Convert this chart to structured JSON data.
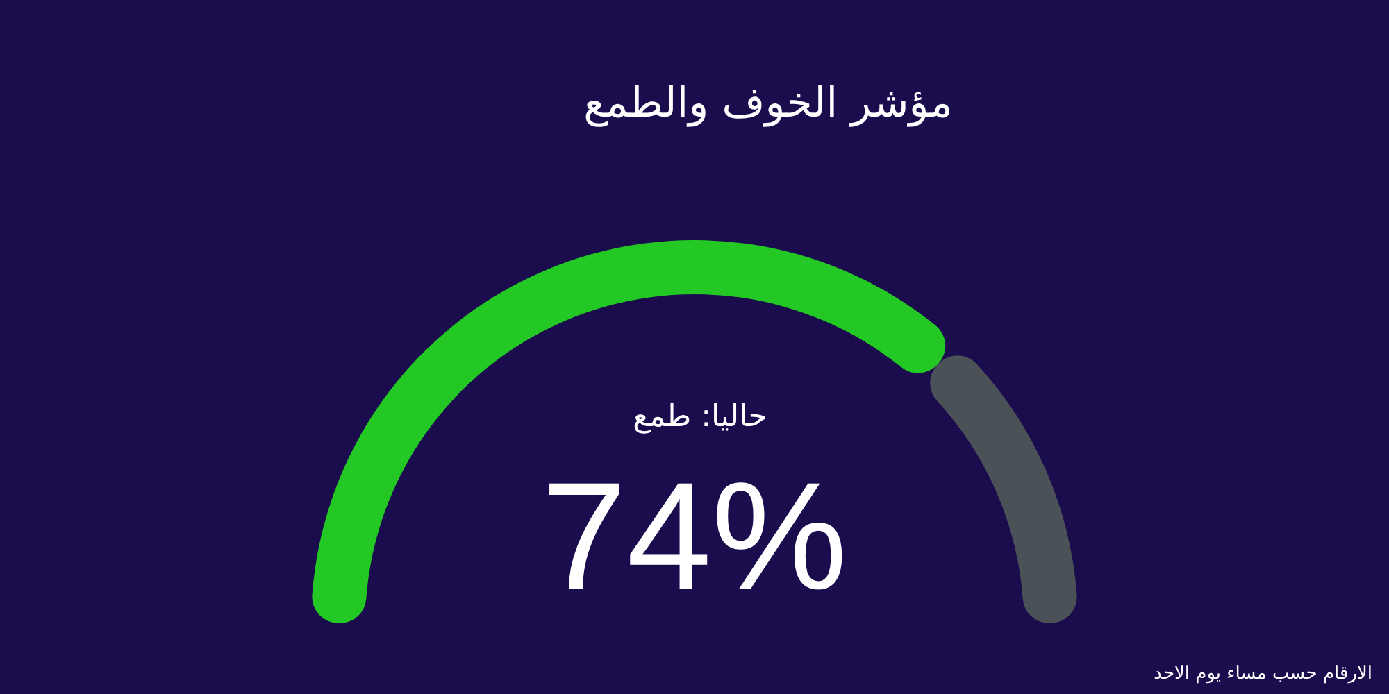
{
  "chart_data": {
    "type": "donut",
    "title": "مؤشر الخوف والطمع",
    "categories": [
      null,
      null
    ],
    "values": [
      74,
      26
    ],
    "colors": [
      "#24c824",
      "#4a5157"
    ],
    "value_labels": [
      "74%",
      null
    ],
    "annotations": [
      "حاليا: طمع",
      "الارقام حسب مساء يوم الاحد"
    ]
  }
}
